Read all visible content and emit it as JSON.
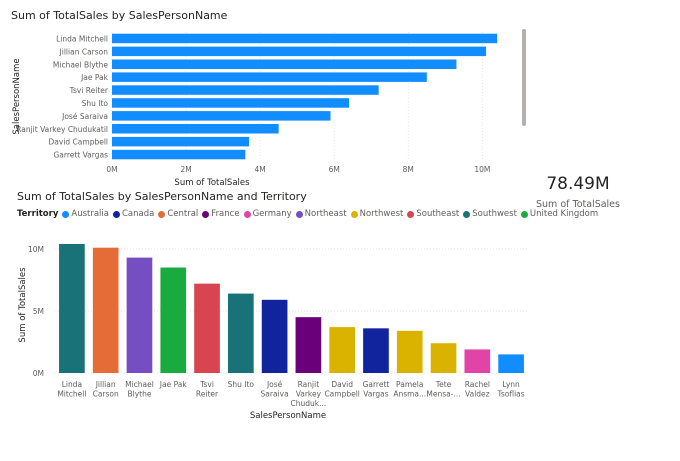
{
  "chart_data": [
    {
      "type": "bar",
      "orientation": "horizontal",
      "title": "Sum of TotalSales by SalesPersonName",
      "xlabel": "Sum of TotalSales",
      "ylabel": "SalesPersonName",
      "categories": [
        "Linda Mitchell",
        "Jillian Carson",
        "Michael Blythe",
        "Jae Pak",
        "Tsvi Reiter",
        "Shu Ito",
        "José Saraiva",
        "Ranjit Varkey Chudukatil",
        "David Campbell",
        "Garrett Vargas"
      ],
      "values": [
        10.4,
        10.1,
        9.3,
        8.5,
        7.2,
        6.4,
        5.9,
        4.5,
        3.7,
        3.6
      ],
      "xlim": [
        0,
        10.8
      ],
      "xticks": [
        0,
        2,
        4,
        6,
        8,
        10
      ],
      "xtick_labels": [
        "0M",
        "2M",
        "4M",
        "6M",
        "8M",
        "10M"
      ],
      "bar_color": "#118DFF",
      "grid": true
    },
    {
      "type": "bar",
      "title": "Sum of TotalSales by SalesPersonName and Territory",
      "xlabel": "SalesPersonName",
      "ylabel": "Sum of TotalSales",
      "legend_title": "Territory",
      "legend_placement": "top-left",
      "legend": [
        {
          "name": "Australia",
          "color": "#118DFF"
        },
        {
          "name": "Canada",
          "color": "#12239E"
        },
        {
          "name": "Central",
          "color": "#E66C37"
        },
        {
          "name": "France",
          "color": "#6B007B"
        },
        {
          "name": "Germany",
          "color": "#E044A7"
        },
        {
          "name": "Northeast",
          "color": "#744EC2"
        },
        {
          "name": "Northwest",
          "color": "#D9B300"
        },
        {
          "name": "Southeast",
          "color": "#D64550"
        },
        {
          "name": "Southwest",
          "color": "#197278"
        },
        {
          "name": "United Kingdom",
          "color": "#1AAB40"
        }
      ],
      "categories": [
        [
          "Linda",
          "Mitchell"
        ],
        [
          "Jillian",
          "Carson"
        ],
        [
          "Michael",
          "Blythe"
        ],
        [
          "Jae Pak"
        ],
        [
          "Tsvi",
          "Reiter"
        ],
        [
          "Shu Ito"
        ],
        [
          "José",
          "Saraiva"
        ],
        [
          "Ranjit",
          "Varkey",
          "Chuduk..."
        ],
        [
          "David",
          "Campbell"
        ],
        [
          "Garrett",
          "Vargas"
        ],
        [
          "Pamela",
          "Ansma..."
        ],
        [
          "Tete",
          "Mensa-..."
        ],
        [
          "Rachel",
          "Valdez"
        ],
        [
          "Lynn",
          "Tsoflias"
        ]
      ],
      "values": [
        10.4,
        10.1,
        9.3,
        8.5,
        7.2,
        6.4,
        5.9,
        4.5,
        3.7,
        3.6,
        3.4,
        2.4,
        1.9,
        1.5
      ],
      "bar_colors": [
        "#197278",
        "#E66C37",
        "#744EC2",
        "#1AAB40",
        "#D64550",
        "#197278",
        "#12239E",
        "#6B007B",
        "#D9B300",
        "#12239E",
        "#D9B300",
        "#D9B300",
        "#E044A7",
        "#118DFF"
      ],
      "ylim": [
        0,
        10.8
      ],
      "yticks": [
        0,
        5,
        10
      ],
      "ytick_labels": [
        "0M",
        "5M",
        "10M"
      ],
      "grid": true
    }
  ],
  "kpi": {
    "value": "78.49M",
    "label": "Sum of TotalSales"
  }
}
